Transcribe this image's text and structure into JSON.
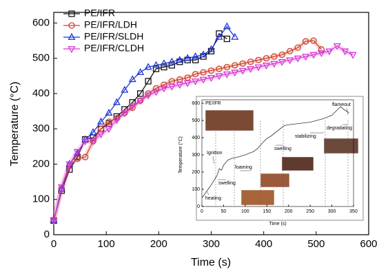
{
  "chart_data": [
    {
      "type": "line",
      "xlabel": "Time (s)",
      "ylabel": "Temperature (°C)",
      "xlim": [
        0,
        600
      ],
      "ylim": [
        0,
        630
      ],
      "xticks": [
        0,
        100,
        200,
        300,
        400,
        500,
        600
      ],
      "yticks": [
        0,
        100,
        200,
        300,
        400,
        500,
        600
      ],
      "legend": "top-left",
      "series": [
        {
          "name": "PE/IFR",
          "color": "#111111",
          "marker": "square",
          "x": [
            0,
            15,
            30,
            45,
            60,
            75,
            90,
            105,
            120,
            135,
            150,
            165,
            180,
            195,
            210,
            225,
            240,
            255,
            270,
            285,
            300,
            315,
            330
          ],
          "values": [
            40,
            125,
            185,
            220,
            270,
            275,
            300,
            315,
            335,
            355,
            375,
            400,
            435,
            470,
            475,
            480,
            490,
            495,
            495,
            505,
            520,
            570,
            555
          ]
        },
        {
          "name": "PE/IFR/LDH",
          "color": "#d0402a",
          "marker": "circle",
          "x": [
            0,
            15,
            30,
            45,
            60,
            75,
            90,
            105,
            120,
            135,
            150,
            165,
            180,
            195,
            210,
            225,
            240,
            255,
            270,
            285,
            300,
            315,
            330,
            345,
            360,
            375,
            390,
            405,
            420,
            435,
            450,
            465,
            480,
            495,
            510
          ],
          "values": [
            40,
            130,
            195,
            215,
            220,
            265,
            300,
            320,
            330,
            345,
            360,
            380,
            400,
            415,
            425,
            435,
            440,
            445,
            455,
            460,
            465,
            470,
            475,
            480,
            485,
            490,
            495,
            500,
            505,
            510,
            520,
            530,
            548,
            550,
            525
          ]
        },
        {
          "name": "PE/IFR/SLDH",
          "color": "#1f35d8",
          "marker": "triangle-up",
          "x": [
            0,
            15,
            30,
            45,
            60,
            75,
            90,
            105,
            120,
            135,
            150,
            165,
            180,
            195,
            210,
            225,
            240,
            255,
            270,
            285,
            300,
            315,
            330,
            345
          ],
          "values": [
            40,
            130,
            200,
            230,
            270,
            290,
            320,
            345,
            375,
            410,
            440,
            460,
            475,
            480,
            485,
            490,
            495,
            500,
            505,
            510,
            525,
            560,
            590,
            560
          ]
        },
        {
          "name": "PE/IFR/CLDH",
          "color": "#d63ad6",
          "marker": "triangle-down",
          "x": [
            0,
            15,
            30,
            45,
            60,
            75,
            90,
            105,
            120,
            135,
            150,
            165,
            180,
            195,
            210,
            225,
            240,
            255,
            270,
            285,
            300,
            315,
            330,
            345,
            360,
            375,
            390,
            405,
            420,
            435,
            450,
            465,
            480,
            495,
            510,
            525,
            540,
            555,
            570
          ],
          "values": [
            40,
            135,
            200,
            235,
            265,
            265,
            285,
            300,
            325,
            345,
            365,
            380,
            395,
            405,
            415,
            420,
            425,
            430,
            435,
            440,
            445,
            450,
            455,
            460,
            465,
            470,
            475,
            480,
            485,
            490,
            495,
            500,
            505,
            510,
            515,
            520,
            535,
            520,
            510
          ]
        }
      ]
    },
    {
      "type": "line",
      "title": "PE/IFR",
      "xlabel": "Time (s)",
      "ylabel": "Temperature (°C)",
      "xlim": [
        0,
        350
      ],
      "ylim": [
        0,
        620
      ],
      "xticks": [
        0,
        50,
        100,
        150,
        200,
        250,
        300,
        350
      ],
      "yticks": [
        0,
        100,
        200,
        300,
        400,
        500,
        600
      ],
      "series": [
        {
          "color": "#333333",
          "x": [
            0,
            20,
            35,
            40,
            45,
            50,
            60,
            70,
            80,
            100,
            120,
            130,
            140,
            150,
            160,
            175,
            190,
            200,
            250,
            280,
            300,
            320,
            330,
            340
          ],
          "values": [
            50,
            120,
            180,
            220,
            210,
            240,
            270,
            280,
            285,
            300,
            320,
            340,
            370,
            395,
            410,
            440,
            470,
            475,
            490,
            510,
            530,
            580,
            560,
            545
          ]
        }
      ],
      "annotations": [
        "heating",
        "Ignition",
        "swelling",
        "foaming",
        "swelling",
        "stabilizing",
        "degradating",
        "flameout"
      ]
    }
  ]
}
